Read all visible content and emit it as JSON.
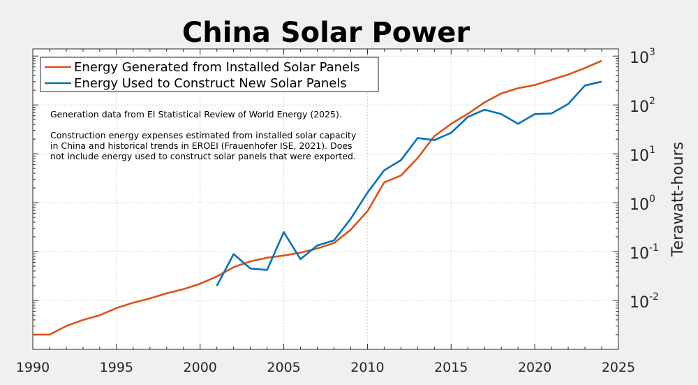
{
  "chart_data": {
    "type": "line",
    "title": "China Solar Power",
    "xlabel": "",
    "ylabel": "Terawatt-hours",
    "y_axis_side": "right",
    "y_scale": "log",
    "xlim": [
      1990,
      2025
    ],
    "ylim": [
      0.001,
      1400
    ],
    "grid": true,
    "legend_position": "top-left",
    "x_ticks": [
      1990,
      1995,
      2000,
      2005,
      2010,
      2015,
      2020,
      2025
    ],
    "x_tick_labels": [
      "1990",
      "1995",
      "2000",
      "2005",
      "2010",
      "2015",
      "2020",
      "2025"
    ],
    "y_ticks": [
      {
        "value": 0.01,
        "base": "10",
        "exp": "-2"
      },
      {
        "value": 0.1,
        "base": "10",
        "exp": "-1"
      },
      {
        "value": 1,
        "base": "10",
        "exp": "0"
      },
      {
        "value": 10,
        "base": "10",
        "exp": "1"
      },
      {
        "value": 100,
        "base": "10",
        "exp": "2"
      },
      {
        "value": 1000,
        "base": "10",
        "exp": "3"
      }
    ],
    "annotations": [
      "Generation data from EI Statistical Review of World Energy (2025).",
      "",
      "Construction energy expenses estimated from installed solar capacity",
      "in China and historical trends in EROEI (Frauenhofer ISE, 2021).  Does",
      "not include energy used to construct solar panels that were exported."
    ],
    "series": [
      {
        "name": "Energy Generated from Installed Solar Panels",
        "color": "#d95319",
        "x": [
          1990,
          1991,
          1992,
          1993,
          1994,
          1995,
          1996,
          1997,
          1998,
          1999,
          2000,
          2001,
          2002,
          2003,
          2004,
          2005,
          2006,
          2007,
          2008,
          2009,
          2010,
          2011,
          2012,
          2013,
          2014,
          2015,
          2016,
          2017,
          2018,
          2019,
          2020,
          2021,
          2022,
          2023,
          2024
        ],
        "values": [
          0.002,
          0.002,
          0.003,
          0.004,
          0.005,
          0.007,
          0.009,
          0.011,
          0.014,
          0.017,
          0.022,
          0.031,
          0.048,
          0.063,
          0.075,
          0.083,
          0.095,
          0.116,
          0.15,
          0.28,
          0.67,
          2.6,
          3.6,
          8.2,
          23,
          41,
          66,
          113,
          172,
          220,
          255,
          326,
          420,
          570,
          800
        ]
      },
      {
        "name": "Energy Used to Construct New Solar Panels",
        "color": "#0072bd",
        "x": [
          2001,
          2002,
          2003,
          2004,
          2005,
          2006,
          2007,
          2008,
          2009,
          2010,
          2011,
          2012,
          2013,
          2014,
          2015,
          2016,
          2017,
          2018,
          2019,
          2020,
          2021,
          2022,
          2023,
          2024
        ],
        "values": [
          0.02,
          0.089,
          0.045,
          0.042,
          0.25,
          0.07,
          0.133,
          0.17,
          0.47,
          1.6,
          4.6,
          7.4,
          21,
          19,
          27,
          57,
          80,
          65,
          41,
          65,
          67,
          105,
          250,
          300
        ]
      }
    ]
  }
}
